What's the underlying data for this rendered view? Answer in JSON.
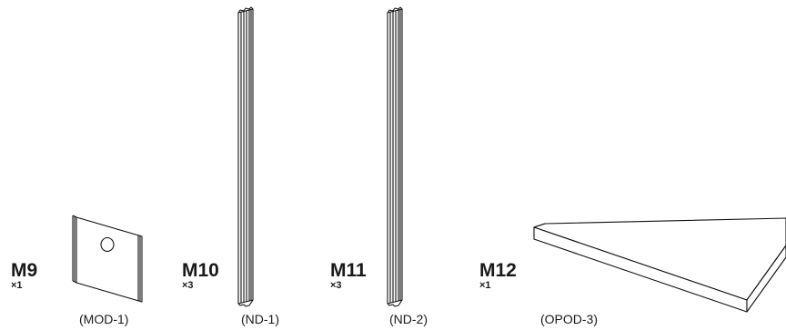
{
  "parts": [
    {
      "id": "M9",
      "qty": "×1",
      "code": "(MOD-1)",
      "drawing": "bracket-plate-drawing"
    },
    {
      "id": "M10",
      "qty": "×3",
      "code": "(ND-1)",
      "drawing": "profile-rail-drawing"
    },
    {
      "id": "M11",
      "qty": "×3",
      "code": "(ND-2)",
      "drawing": "profile-rail-drawing"
    },
    {
      "id": "M12",
      "qty": "×1",
      "code": "(OPOD-3)",
      "drawing": "flat-panel-drawing"
    }
  ]
}
